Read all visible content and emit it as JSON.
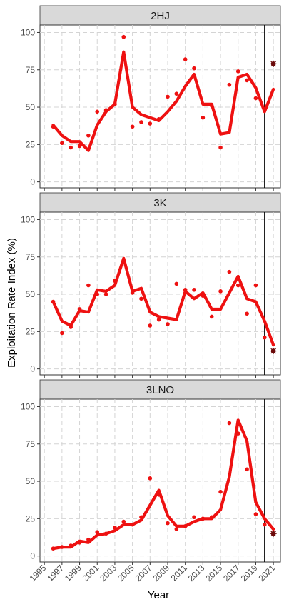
{
  "chart_data": {
    "type": "line",
    "xlabel": "Year",
    "ylabel": "Exploitation Rate Index (%)",
    "x_ticks": [
      "1995",
      "1997",
      "1999",
      "2001",
      "2003",
      "2005",
      "2007",
      "2009",
      "2011",
      "2013",
      "2015",
      "2017",
      "2019",
      "2021"
    ],
    "xlim": [
      1994.5,
      2021.8
    ],
    "ylim": [
      -4,
      105
    ],
    "y_ticks": [
      "0",
      "25",
      "50",
      "75",
      "100"
    ],
    "vline_x": 2020,
    "colors": {
      "line": "#ee1111",
      "points": "#ee1111",
      "forecast": "#6b0a0a",
      "vline": "#000000"
    },
    "panels": [
      {
        "title": "2HJ",
        "line": {
          "x": [
            1996,
            1997,
            1998,
            1999,
            2000,
            2001,
            2002,
            2003,
            2004,
            2005,
            2006,
            2007,
            2008,
            2009,
            2010,
            2011,
            2012,
            2013,
            2014,
            2015,
            2016,
            2017,
            2018,
            2019,
            2020,
            2021
          ],
          "y": [
            38,
            31,
            27,
            27,
            21,
            38,
            47,
            52,
            87,
            50,
            45,
            43,
            41,
            47,
            54,
            64,
            72,
            52,
            52,
            32,
            33,
            70,
            72,
            63,
            47,
            62
          ]
        },
        "points": {
          "x": [
            1996,
            1997,
            1998,
            1999,
            2000,
            2001,
            2002,
            2003,
            2004,
            2005,
            2006,
            2007,
            2008,
            2009,
            2010,
            2011,
            2012,
            2013,
            2014,
            2015,
            2016,
            2017,
            2018,
            2019,
            2020
          ],
          "y": [
            37,
            26,
            23,
            24,
            31,
            47,
            48,
            52,
            97,
            37,
            40,
            39,
            42,
            57,
            59,
            82,
            76,
            43,
            51,
            23,
            65,
            74,
            68,
            56,
            48
          ]
        },
        "forecast": {
          "x": 2021,
          "y": 79
        }
      },
      {
        "title": "3K",
        "line": {
          "x": [
            1996,
            1997,
            1998,
            1999,
            2000,
            2001,
            2002,
            2003,
            2004,
            2005,
            2006,
            2007,
            2008,
            2009,
            2010,
            2011,
            2012,
            2013,
            2014,
            2015,
            2016,
            2017,
            2018,
            2019,
            2020,
            2021
          ],
          "y": [
            45,
            32,
            29,
            39,
            38,
            53,
            52,
            56,
            74,
            52,
            54,
            38,
            35,
            34,
            33,
            52,
            47,
            51,
            40,
            40,
            51,
            62,
            47,
            45,
            32,
            16
          ]
        },
        "points": {
          "x": [
            1996,
            1997,
            1998,
            1999,
            2000,
            2001,
            2002,
            2003,
            2004,
            2005,
            2006,
            2007,
            2008,
            2009,
            2010,
            2011,
            2012,
            2013,
            2014,
            2015,
            2016,
            2017,
            2018,
            2019,
            2020
          ],
          "y": [
            45,
            24,
            28,
            40,
            56,
            50,
            50,
            59,
            72,
            51,
            47,
            29,
            33,
            30,
            57,
            53,
            53,
            49,
            35,
            52,
            65,
            56,
            37,
            56,
            21
          ]
        },
        "forecast": {
          "x": 2021,
          "y": 12
        }
      },
      {
        "title": "3LNO",
        "line": {
          "x": [
            1996,
            1997,
            1998,
            1999,
            2000,
            2001,
            2002,
            2003,
            2004,
            2005,
            2006,
            2007,
            2008,
            2009,
            2010,
            2011,
            2012,
            2013,
            2014,
            2015,
            2016,
            2017,
            2018,
            2019,
            2020,
            2021
          ],
          "y": [
            5,
            6,
            6,
            10,
            9,
            14,
            15,
            17,
            21,
            21,
            24,
            34,
            44,
            27,
            20,
            20,
            23,
            25,
            25,
            31,
            53,
            91,
            77,
            36,
            25,
            18
          ]
        },
        "points": {
          "x": [
            1996,
            1997,
            1998,
            1999,
            2000,
            2001,
            2002,
            2003,
            2004,
            2005,
            2006,
            2007,
            2008,
            2009,
            2010,
            2011,
            2012,
            2013,
            2014,
            2015,
            2016,
            2017,
            2018,
            2019,
            2020
          ],
          "y": [
            5,
            6,
            7,
            9,
            11,
            16,
            15,
            19,
            23,
            21,
            26,
            52,
            41,
            22,
            18,
            20,
            26,
            25,
            26,
            43,
            89,
            82,
            58,
            28,
            21
          ]
        },
        "forecast": {
          "x": 2021,
          "y": 15
        }
      }
    ]
  }
}
